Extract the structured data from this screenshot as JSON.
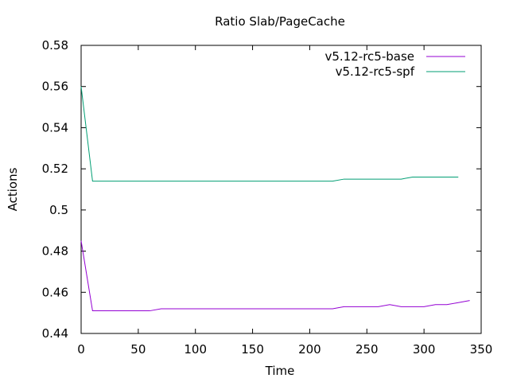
{
  "chart_data": {
    "type": "line",
    "title": "Ratio Slab/PageCache",
    "xlabel": "Time",
    "ylabel": "Actions",
    "xlim": [
      0,
      350
    ],
    "ylim": [
      0.44,
      0.58
    ],
    "x_ticks": [
      0,
      50,
      100,
      150,
      200,
      250,
      300,
      350
    ],
    "x_tick_labels": [
      "0",
      "50",
      "100",
      "150",
      "200",
      "250",
      "300",
      "350"
    ],
    "y_ticks": [
      0.44,
      0.46,
      0.48,
      0.5,
      0.52,
      0.54,
      0.56,
      0.58
    ],
    "y_tick_labels": [
      "0.44",
      "0.46",
      "0.48",
      "0.5",
      "0.52",
      "0.54",
      "0.56",
      "0.58"
    ],
    "grid": false,
    "legend_position": "top-right",
    "series": [
      {
        "name": "v5.12-rc5-base",
        "color": "#9400d3",
        "points": [
          [
            0,
            0.485
          ],
          [
            10,
            0.451
          ],
          [
            20,
            0.451
          ],
          [
            30,
            0.451
          ],
          [
            40,
            0.451
          ],
          [
            50,
            0.451
          ],
          [
            60,
            0.451
          ],
          [
            70,
            0.452
          ],
          [
            80,
            0.452
          ],
          [
            90,
            0.452
          ],
          [
            100,
            0.452
          ],
          [
            110,
            0.452
          ],
          [
            120,
            0.452
          ],
          [
            130,
            0.452
          ],
          [
            140,
            0.452
          ],
          [
            150,
            0.452
          ],
          [
            160,
            0.452
          ],
          [
            170,
            0.452
          ],
          [
            180,
            0.452
          ],
          [
            190,
            0.452
          ],
          [
            200,
            0.452
          ],
          [
            210,
            0.452
          ],
          [
            220,
            0.452
          ],
          [
            230,
            0.453
          ],
          [
            240,
            0.453
          ],
          [
            250,
            0.453
          ],
          [
            260,
            0.453
          ],
          [
            270,
            0.454
          ],
          [
            280,
            0.453
          ],
          [
            290,
            0.453
          ],
          [
            300,
            0.453
          ],
          [
            310,
            0.454
          ],
          [
            320,
            0.454
          ],
          [
            330,
            0.455
          ],
          [
            340,
            0.456
          ]
        ]
      },
      {
        "name": "v5.12-rc5-spf",
        "color": "#009e73",
        "points": [
          [
            0,
            0.56
          ],
          [
            10,
            0.514
          ],
          [
            20,
            0.514
          ],
          [
            30,
            0.514
          ],
          [
            40,
            0.514
          ],
          [
            50,
            0.514
          ],
          [
            60,
            0.514
          ],
          [
            70,
            0.514
          ],
          [
            80,
            0.514
          ],
          [
            90,
            0.514
          ],
          [
            100,
            0.514
          ],
          [
            110,
            0.514
          ],
          [
            120,
            0.514
          ],
          [
            130,
            0.514
          ],
          [
            140,
            0.514
          ],
          [
            150,
            0.514
          ],
          [
            160,
            0.514
          ],
          [
            170,
            0.514
          ],
          [
            180,
            0.514
          ],
          [
            190,
            0.514
          ],
          [
            200,
            0.514
          ],
          [
            210,
            0.514
          ],
          [
            220,
            0.514
          ],
          [
            230,
            0.515
          ],
          [
            240,
            0.515
          ],
          [
            250,
            0.515
          ],
          [
            260,
            0.515
          ],
          [
            270,
            0.515
          ],
          [
            280,
            0.515
          ],
          [
            290,
            0.516
          ],
          [
            300,
            0.516
          ],
          [
            310,
            0.516
          ],
          [
            320,
            0.516
          ],
          [
            330,
            0.516
          ]
        ]
      }
    ]
  }
}
